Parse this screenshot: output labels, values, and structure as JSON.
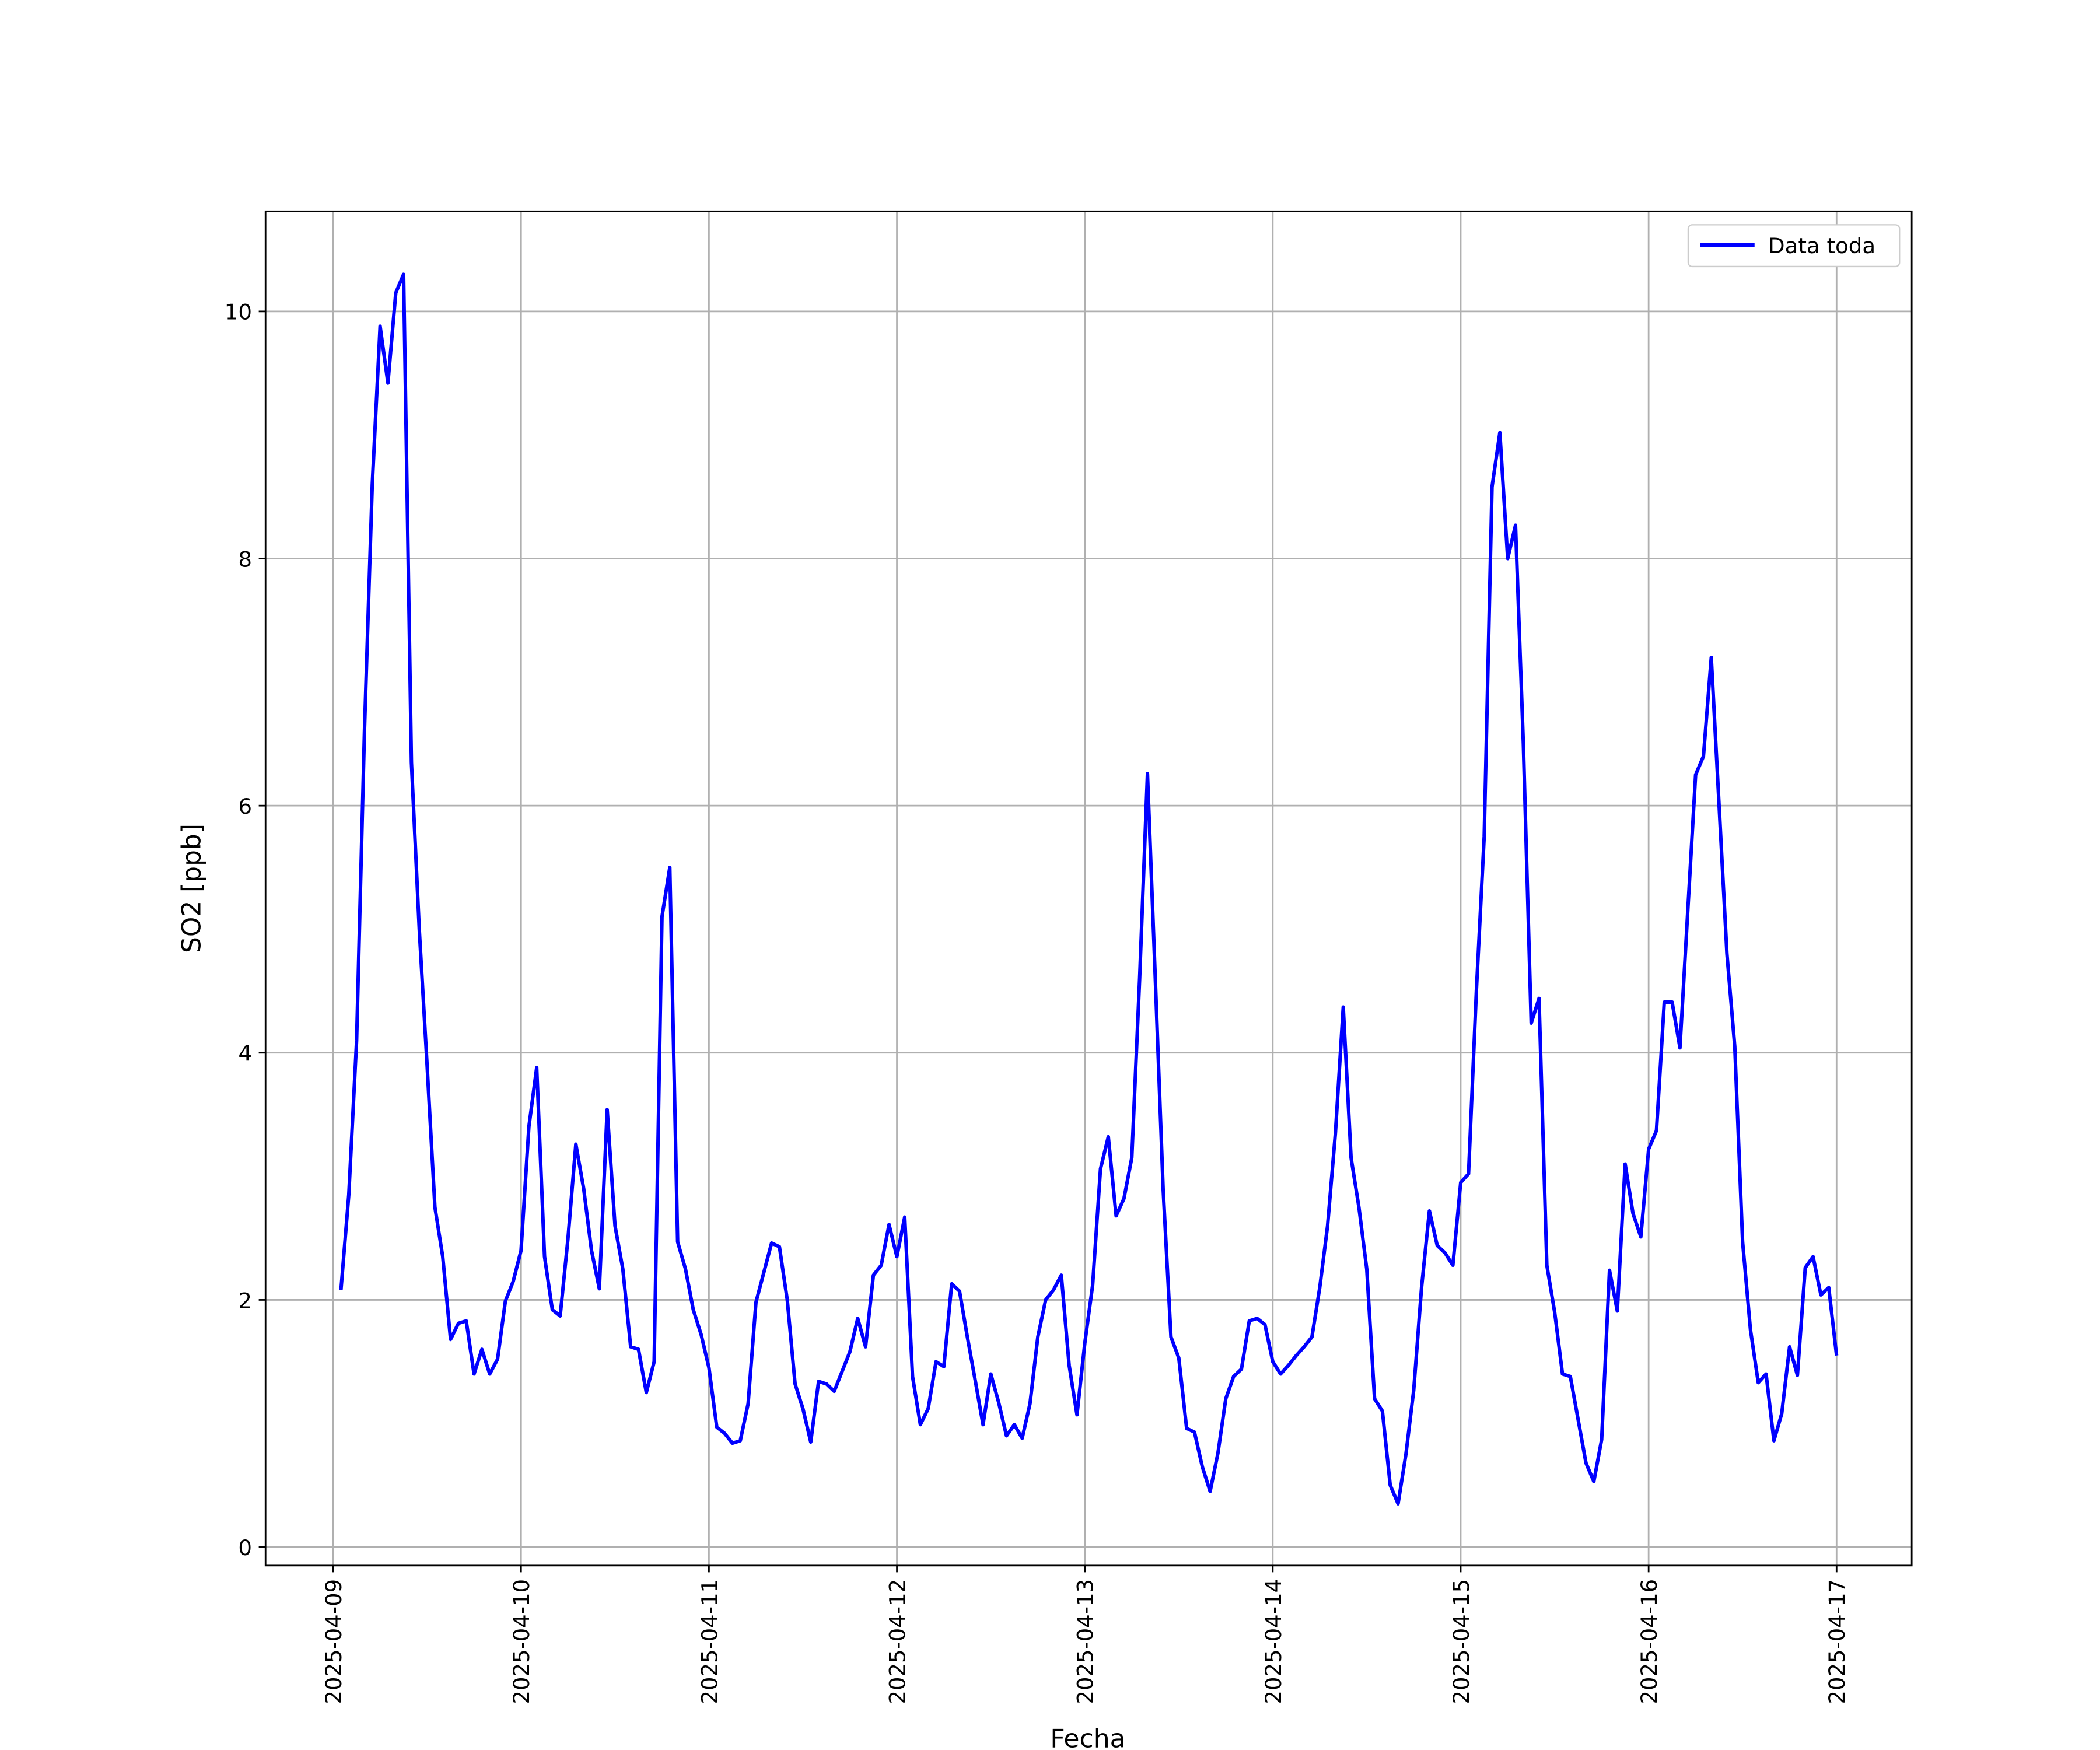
{
  "chart_data": {
    "type": "line",
    "xlabel": "Fecha",
    "ylabel": "SO2 [ppb]",
    "legend": "upper right",
    "grid": true,
    "xlim": [
      "2025-04-08T15:22",
      "2025-04-17T09:36"
    ],
    "xticks": [
      "2025-04-09",
      "2025-04-10",
      "2025-04-11",
      "2025-04-12",
      "2025-04-13",
      "2025-04-14",
      "2025-04-15",
      "2025-04-16",
      "2025-04-17"
    ],
    "ylim": [
      -0.15,
      10.81
    ],
    "yticks": [
      0,
      2,
      4,
      6,
      8,
      10
    ],
    "x": [
      "2025-04-09T01:00",
      "2025-04-09T02:00",
      "2025-04-09T03:00",
      "2025-04-09T04:00",
      "2025-04-09T05:00",
      "2025-04-09T06:00",
      "2025-04-09T07:00",
      "2025-04-09T08:00",
      "2025-04-09T09:00",
      "2025-04-09T10:00",
      "2025-04-09T11:00",
      "2025-04-09T12:00",
      "2025-04-09T13:00",
      "2025-04-09T14:00",
      "2025-04-09T15:00",
      "2025-04-09T16:00",
      "2025-04-09T17:00",
      "2025-04-09T18:00",
      "2025-04-09T19:00",
      "2025-04-09T20:00",
      "2025-04-09T21:00",
      "2025-04-09T22:00",
      "2025-04-09T23:00",
      "2025-04-10T00:00",
      "2025-04-10T01:00",
      "2025-04-10T02:00",
      "2025-04-10T03:00",
      "2025-04-10T04:00",
      "2025-04-10T05:00",
      "2025-04-10T06:00",
      "2025-04-10T07:00",
      "2025-04-10T08:00",
      "2025-04-10T09:00",
      "2025-04-10T10:00",
      "2025-04-10T11:00",
      "2025-04-10T12:00",
      "2025-04-10T13:00",
      "2025-04-10T14:00",
      "2025-04-10T15:00",
      "2025-04-10T16:00",
      "2025-04-10T17:00",
      "2025-04-10T18:00",
      "2025-04-10T19:00",
      "2025-04-10T20:00",
      "2025-04-10T21:00",
      "2025-04-10T22:00",
      "2025-04-10T23:00",
      "2025-04-11T00:00",
      "2025-04-11T01:00",
      "2025-04-11T02:00",
      "2025-04-11T03:00",
      "2025-04-11T04:00",
      "2025-04-11T05:00",
      "2025-04-11T06:00",
      "2025-04-11T07:00",
      "2025-04-11T08:00",
      "2025-04-11T09:00",
      "2025-04-11T10:00",
      "2025-04-11T11:00",
      "2025-04-11T12:00",
      "2025-04-11T13:00",
      "2025-04-11T14:00",
      "2025-04-11T15:00",
      "2025-04-11T16:00",
      "2025-04-11T17:00",
      "2025-04-11T18:00",
      "2025-04-11T19:00",
      "2025-04-11T20:00",
      "2025-04-11T21:00",
      "2025-04-11T22:00",
      "2025-04-11T23:00",
      "2025-04-12T00:00",
      "2025-04-12T01:00",
      "2025-04-12T02:00",
      "2025-04-12T03:00",
      "2025-04-12T04:00",
      "2025-04-12T05:00",
      "2025-04-12T06:00",
      "2025-04-12T07:00",
      "2025-04-12T08:00",
      "2025-04-12T09:00",
      "2025-04-12T10:00",
      "2025-04-12T11:00",
      "2025-04-12T12:00",
      "2025-04-12T13:00",
      "2025-04-12T14:00",
      "2025-04-12T15:00",
      "2025-04-12T16:00",
      "2025-04-12T17:00",
      "2025-04-12T18:00",
      "2025-04-12T19:00",
      "2025-04-12T20:00",
      "2025-04-12T21:00",
      "2025-04-12T22:00",
      "2025-04-12T23:00",
      "2025-04-13T00:00",
      "2025-04-13T01:00",
      "2025-04-13T02:00",
      "2025-04-13T03:00",
      "2025-04-13T04:00",
      "2025-04-13T05:00",
      "2025-04-13T06:00",
      "2025-04-13T07:00",
      "2025-04-13T08:00",
      "2025-04-13T09:00",
      "2025-04-13T10:00",
      "2025-04-13T11:00",
      "2025-04-13T12:00",
      "2025-04-13T13:00",
      "2025-04-13T14:00",
      "2025-04-13T15:00",
      "2025-04-13T16:00",
      "2025-04-13T17:00",
      "2025-04-13T18:00",
      "2025-04-13T19:00",
      "2025-04-13T20:00",
      "2025-04-13T21:00",
      "2025-04-13T22:00",
      "2025-04-13T23:00",
      "2025-04-14T00:00",
      "2025-04-14T01:00",
      "2025-04-14T02:00",
      "2025-04-14T03:00",
      "2025-04-14T04:00",
      "2025-04-14T05:00",
      "2025-04-14T06:00",
      "2025-04-14T07:00",
      "2025-04-14T08:00",
      "2025-04-14T09:00",
      "2025-04-14T10:00",
      "2025-04-14T11:00",
      "2025-04-14T12:00",
      "2025-04-14T13:00",
      "2025-04-14T14:00",
      "2025-04-14T15:00",
      "2025-04-14T16:00",
      "2025-04-14T17:00",
      "2025-04-14T18:00",
      "2025-04-14T19:00",
      "2025-04-14T20:00",
      "2025-04-14T21:00",
      "2025-04-14T22:00",
      "2025-04-14T23:00",
      "2025-04-15T00:00",
      "2025-04-15T01:00",
      "2025-04-15T02:00",
      "2025-04-15T03:00",
      "2025-04-15T04:00",
      "2025-04-15T05:00",
      "2025-04-15T06:00",
      "2025-04-15T07:00",
      "2025-04-15T08:00",
      "2025-04-15T09:00",
      "2025-04-15T10:00",
      "2025-04-15T11:00",
      "2025-04-15T12:00",
      "2025-04-15T13:00",
      "2025-04-15T14:00",
      "2025-04-15T15:00",
      "2025-04-15T16:00",
      "2025-04-15T17:00",
      "2025-04-15T18:00",
      "2025-04-15T19:00",
      "2025-04-15T20:00",
      "2025-04-15T21:00",
      "2025-04-15T22:00",
      "2025-04-15T23:00",
      "2025-04-16T00:00",
      "2025-04-16T01:00",
      "2025-04-16T02:00",
      "2025-04-16T03:00",
      "2025-04-16T04:00",
      "2025-04-16T05:00",
      "2025-04-16T06:00",
      "2025-04-16T07:00",
      "2025-04-16T08:00",
      "2025-04-16T09:00",
      "2025-04-16T10:00",
      "2025-04-16T11:00",
      "2025-04-16T12:00",
      "2025-04-16T13:00",
      "2025-04-16T14:00",
      "2025-04-16T15:00",
      "2025-04-16T16:00",
      "2025-04-16T17:00",
      "2025-04-16T18:00",
      "2025-04-16T19:00",
      "2025-04-16T20:00",
      "2025-04-16T21:00",
      "2025-04-16T22:00",
      "2025-04-16T23:00",
      "2025-04-17T00:00"
    ],
    "series": [
      {
        "name": "Data toda",
        "color": "#0000ff",
        "values": [
          2.08,
          2.85,
          4.1,
          6.6,
          8.6,
          9.88,
          9.42,
          10.15,
          10.3,
          6.35,
          5.0,
          3.9,
          2.75,
          2.35,
          1.68,
          1.81,
          1.83,
          1.4,
          1.6,
          1.4,
          1.52,
          1.99,
          2.15,
          2.4,
          3.4,
          3.88,
          2.35,
          1.92,
          1.87,
          2.5,
          3.26,
          2.9,
          2.4,
          2.09,
          3.54,
          2.6,
          2.25,
          1.62,
          1.6,
          1.25,
          1.5,
          5.1,
          5.5,
          2.47,
          2.25,
          1.92,
          1.72,
          1.45,
          0.97,
          0.92,
          0.84,
          0.86,
          1.16,
          1.98,
          2.22,
          2.46,
          2.43,
          2.0,
          1.32,
          1.12,
          0.85,
          1.34,
          1.32,
          1.26,
          1.42,
          1.58,
          1.85,
          1.62,
          2.2,
          2.28,
          2.61,
          2.35,
          2.67,
          1.38,
          0.99,
          1.12,
          1.5,
          1.46,
          2.13,
          2.07,
          1.7,
          1.35,
          0.99,
          1.4,
          1.17,
          0.9,
          0.99,
          0.88,
          1.16,
          1.7,
          2.0,
          2.08,
          2.2,
          1.47,
          1.07,
          1.65,
          2.12,
          3.06,
          3.32,
          2.68,
          2.82,
          3.15,
          4.6,
          6.26,
          4.6,
          2.9,
          1.7,
          1.53,
          0.96,
          0.93,
          0.65,
          0.45,
          0.76,
          1.2,
          1.38,
          1.44,
          1.83,
          1.85,
          1.8,
          1.5,
          1.4,
          1.47,
          1.55,
          1.62,
          1.7,
          2.1,
          2.6,
          3.35,
          4.37,
          3.15,
          2.75,
          2.25,
          1.2,
          1.1,
          0.5,
          0.35,
          0.75,
          1.27,
          2.1,
          2.72,
          2.44,
          2.38,
          2.28,
          2.95,
          3.02,
          4.5,
          5.75,
          8.58,
          9.02,
          8.0,
          8.27,
          6.5,
          4.24,
          4.44,
          2.28,
          1.9,
          1.4,
          1.38,
          1.03,
          0.68,
          0.53,
          0.87,
          2.24,
          1.91,
          3.1,
          2.7,
          2.51,
          3.22,
          3.37,
          4.41,
          4.41,
          4.04,
          5.15,
          6.25,
          6.4,
          7.2,
          6.0,
          4.8,
          4.05,
          2.47,
          1.76,
          1.33,
          1.4,
          0.86,
          1.08,
          1.62,
          1.39,
          2.26,
          2.35,
          2.04,
          2.1,
          1.55
        ]
      }
    ]
  }
}
